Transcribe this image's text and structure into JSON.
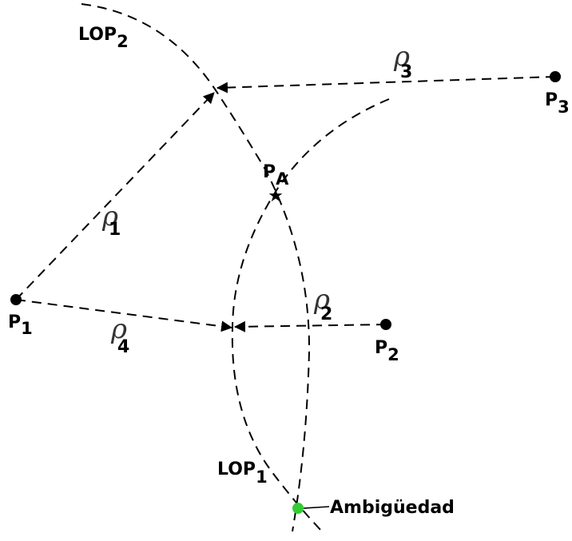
{
  "points": {
    "p1": {
      "name": "P",
      "sub": "1"
    },
    "p2": {
      "name": "P",
      "sub": "2"
    },
    "p3": {
      "name": "P",
      "sub": "3"
    },
    "pa": {
      "name": "P",
      "sub": "A"
    }
  },
  "lops": {
    "lop1": {
      "name": "LOP",
      "sub": "1"
    },
    "lop2": {
      "name": "LOP",
      "sub": "2"
    }
  },
  "ranges": {
    "rho1": {
      "symbol": "ρ",
      "sub": "1"
    },
    "rho2": {
      "symbol": "ρ",
      "sub": "2"
    },
    "rho3": {
      "symbol": "ρ",
      "sub": "3"
    },
    "rho4": {
      "symbol": "ρ",
      "sub": "4"
    }
  },
  "ambiguity": {
    "label": "Ambigüedad",
    "color": "#33cc33"
  }
}
